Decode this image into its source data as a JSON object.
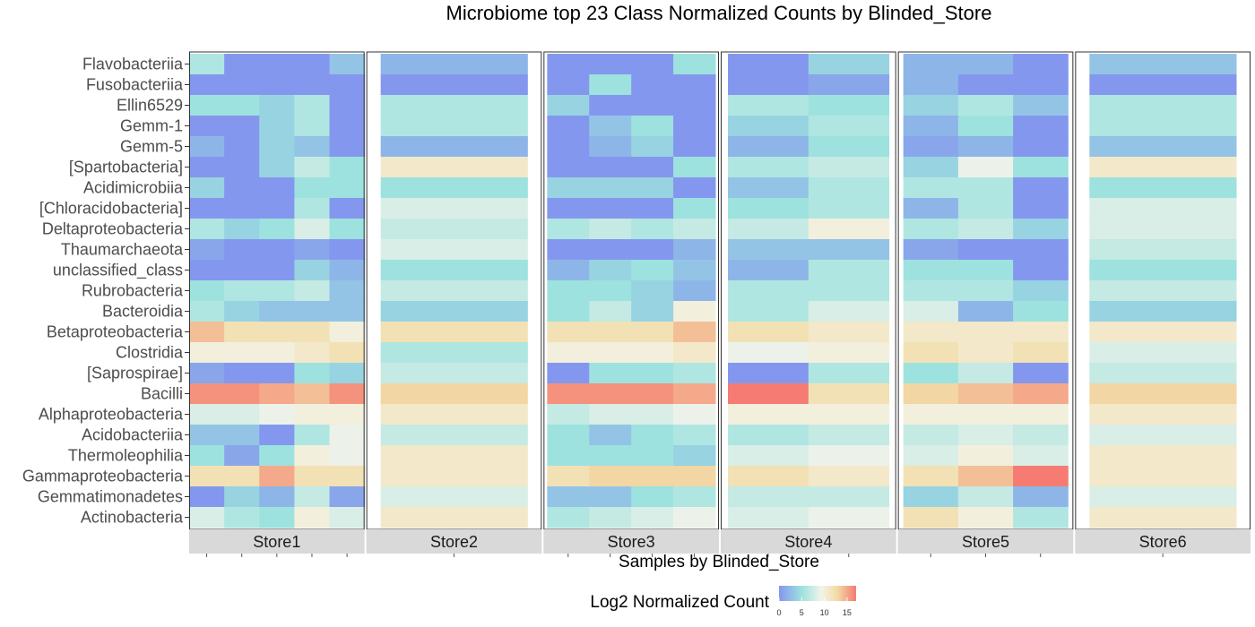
{
  "chart_data": {
    "type": "heatmap",
    "title": "Microbiome top 23 Class Normalized Counts by Blinded_Store",
    "xlabel": "Samples by Blinded_Store",
    "ylabel": "",
    "legend": {
      "title": "Log2 Normalized Count",
      "ticks": [
        0,
        5,
        10,
        15
      ],
      "range": [
        0,
        17
      ],
      "placement": "bottom"
    },
    "rows": [
      "Flavobacteriia",
      "Fusobacteriia",
      "Ellin6529",
      "Gemm-1",
      "Gemm-5",
      "[Spartobacteria]",
      "Acidimicrobiia",
      "[Chloracidobacteria]",
      "Deltaproteobacteria",
      "Thaumarchaeota",
      "unclassified_class",
      "Rubrobacteria",
      "Bacteroidia",
      "Betaproteobacteria",
      "Clostridia",
      "[Saprospirae]",
      "Bacilli",
      "Alphaproteobacteria",
      "Acidobacteriia",
      "Thermoleophilia",
      "Gammaproteobacteria",
      "Gemmatimonadetes",
      "Actinobacteria"
    ],
    "facets": [
      {
        "name": "Store1",
        "values": [
          [
            6,
            0,
            0,
            0,
            3
          ],
          [
            0,
            0,
            0,
            0,
            0
          ],
          [
            5,
            5,
            4,
            6,
            0
          ],
          [
            0,
            0,
            4,
            6,
            0
          ],
          [
            2,
            0,
            4,
            3,
            0
          ],
          [
            0,
            0,
            4,
            7,
            5
          ],
          [
            4,
            0,
            0,
            5,
            5
          ],
          [
            0,
            0,
            0,
            6,
            0
          ],
          [
            6,
            4,
            5,
            8,
            5
          ],
          [
            1,
            0,
            0,
            1,
            0
          ],
          [
            0,
            0,
            0,
            4,
            2
          ],
          [
            5,
            6,
            6,
            7,
            3
          ],
          [
            6,
            4,
            3,
            3,
            3
          ],
          [
            14,
            12,
            12,
            12,
            10
          ],
          [
            10,
            10,
            10,
            11,
            12
          ],
          [
            1,
            0,
            0,
            5,
            4
          ],
          [
            16,
            16,
            15,
            14,
            16
          ],
          [
            8,
            8,
            9,
            10,
            10
          ],
          [
            3,
            3,
            0,
            6,
            9
          ],
          [
            5,
            1,
            5,
            10,
            9
          ],
          [
            12,
            12,
            15,
            12,
            12
          ],
          [
            0,
            4,
            2,
            7,
            1
          ],
          [
            8,
            6,
            5,
            10,
            8
          ]
        ]
      },
      {
        "name": "Store2",
        "values": [
          [
            2
          ],
          [
            0
          ],
          [
            6
          ],
          [
            6
          ],
          [
            2
          ],
          [
            11
          ],
          [
            5
          ],
          [
            8
          ],
          [
            7
          ],
          [
            8
          ],
          [
            5
          ],
          [
            7
          ],
          [
            4
          ],
          [
            12
          ],
          [
            6
          ],
          [
            7
          ],
          [
            13
          ],
          [
            11
          ],
          [
            7
          ],
          [
            11
          ],
          [
            11
          ],
          [
            8
          ],
          [
            11
          ]
        ]
      },
      {
        "name": "Store3",
        "values": [
          [
            0,
            0,
            0,
            5
          ],
          [
            0,
            5,
            0,
            0
          ],
          [
            4,
            0,
            0,
            0
          ],
          [
            0,
            3,
            5,
            0
          ],
          [
            0,
            2,
            4,
            0
          ],
          [
            0,
            0,
            0,
            5
          ],
          [
            4,
            4,
            4,
            0
          ],
          [
            0,
            0,
            0,
            5
          ],
          [
            6,
            7,
            6,
            7
          ],
          [
            0,
            0,
            0,
            2
          ],
          [
            2,
            4,
            5,
            3
          ],
          [
            5,
            5,
            4,
            2
          ],
          [
            5,
            7,
            4,
            10
          ],
          [
            12,
            12,
            12,
            14
          ],
          [
            10,
            10,
            10,
            11
          ],
          [
            0,
            5,
            5,
            6
          ],
          [
            16,
            16,
            16,
            15
          ],
          [
            7,
            8,
            8,
            9
          ],
          [
            5,
            3,
            5,
            6
          ],
          [
            5,
            5,
            5,
            4
          ],
          [
            12,
            13,
            13,
            13
          ],
          [
            3,
            3,
            5,
            6
          ],
          [
            6,
            7,
            8,
            9
          ]
        ]
      },
      {
        "name": "Store4",
        "values": [
          [
            0,
            4
          ],
          [
            0,
            1
          ],
          [
            6,
            5
          ],
          [
            4,
            6
          ],
          [
            2,
            5
          ],
          [
            6,
            7
          ],
          [
            3,
            6
          ],
          [
            5,
            6
          ],
          [
            7,
            10
          ],
          [
            3,
            3
          ],
          [
            2,
            6
          ],
          [
            6,
            6
          ],
          [
            6,
            8
          ],
          [
            12,
            11
          ],
          [
            9,
            10
          ],
          [
            0,
            6
          ],
          [
            17,
            12
          ],
          [
            10,
            10
          ],
          [
            6,
            7
          ],
          [
            8,
            9
          ],
          [
            12,
            11
          ],
          [
            7,
            7
          ],
          [
            8,
            9
          ]
        ]
      },
      {
        "name": "Store5",
        "values": [
          [
            2,
            2,
            0
          ],
          [
            2,
            0,
            0
          ],
          [
            4,
            6,
            3
          ],
          [
            2,
            5,
            0
          ],
          [
            1,
            2,
            0
          ],
          [
            4,
            9,
            5
          ],
          [
            6,
            6,
            0
          ],
          [
            2,
            6,
            0
          ],
          [
            6,
            7,
            4
          ],
          [
            1,
            0,
            0
          ],
          [
            5,
            5,
            0
          ],
          [
            6,
            6,
            4
          ],
          [
            8,
            2,
            5
          ],
          [
            11,
            11,
            11
          ],
          [
            12,
            11,
            12
          ],
          [
            5,
            7,
            0
          ],
          [
            13,
            14,
            15
          ],
          [
            10,
            10,
            10
          ],
          [
            7,
            8,
            7
          ],
          [
            8,
            10,
            8
          ],
          [
            12,
            14,
            17
          ],
          [
            4,
            7,
            2
          ],
          [
            12,
            10,
            6
          ]
        ]
      },
      {
        "name": "Store6",
        "values": [
          [
            3
          ],
          [
            0
          ],
          [
            6
          ],
          [
            6
          ],
          [
            3
          ],
          [
            11
          ],
          [
            5
          ],
          [
            8
          ],
          [
            8
          ],
          [
            7
          ],
          [
            5
          ],
          [
            7
          ],
          [
            4
          ],
          [
            11
          ],
          [
            8
          ],
          [
            7
          ],
          [
            13
          ],
          [
            11
          ],
          [
            8
          ],
          [
            11
          ],
          [
            11
          ],
          [
            8
          ],
          [
            11
          ]
        ]
      }
    ]
  }
}
